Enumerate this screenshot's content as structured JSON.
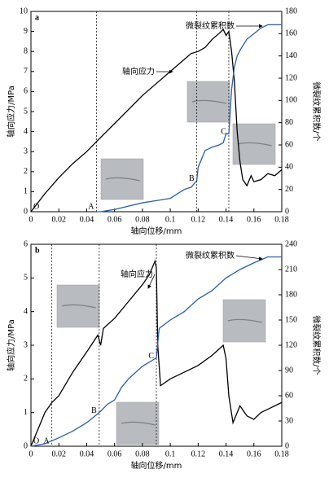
{
  "chart_data": [
    {
      "type": "line",
      "title": "a",
      "x_label": "轴向位移/mm",
      "y_label": "轴向应力/MPa",
      "y2_label": "微裂纹累积数/个",
      "xlim": [
        0,
        0.18
      ],
      "xticks": [
        0,
        0.02,
        0.04,
        0.06,
        0.08,
        0.1,
        0.12,
        0.14,
        0.16,
        0.18
      ],
      "ylim": [
        0,
        10
      ],
      "yticks": [
        0,
        1,
        2,
        3,
        4,
        5,
        6,
        7,
        8,
        9,
        10
      ],
      "y2lim": [
        0,
        180
      ],
      "y2ticks": [
        0,
        20,
        40,
        60,
        80,
        100,
        120,
        140,
        160,
        180
      ],
      "vlines": [
        0.047,
        0.119,
        0.142
      ],
      "point_labels": [
        {
          "label": "O",
          "x": 0,
          "y": 0
        },
        {
          "label": "A",
          "x": 0.047,
          "y": 0
        },
        {
          "label": "B",
          "x": 0.119,
          "y": 28
        },
        {
          "label": "C",
          "x": 0.142,
          "y": 70
        }
      ],
      "series": [
        {
          "name": "轴向应力",
          "color": "#000000",
          "x": [
            0,
            0.01,
            0.02,
            0.03,
            0.04,
            0.047,
            0.06,
            0.07,
            0.08,
            0.09,
            0.1,
            0.11,
            0.115,
            0.12,
            0.125,
            0.13,
            0.135,
            0.138,
            0.14,
            0.142,
            0.144,
            0.146,
            0.148,
            0.15,
            0.152,
            0.155,
            0.158,
            0.16,
            0.165,
            0.17,
            0.175,
            0.18
          ],
          "values": [
            0,
            0.9,
            1.7,
            2.4,
            3.0,
            3.5,
            4.4,
            5.1,
            5.8,
            6.4,
            7.0,
            7.6,
            7.9,
            8.0,
            8.2,
            8.6,
            8.9,
            9.1,
            8.8,
            9.0,
            8.0,
            6.5,
            4.0,
            2.5,
            1.6,
            1.3,
            1.8,
            1.5,
            1.6,
            1.9,
            1.8,
            2.1
          ]
        },
        {
          "name": "微裂纹累积数",
          "color": "#2a5db0",
          "axis": "y2",
          "x": [
            0.047,
            0.05,
            0.06,
            0.07,
            0.08,
            0.09,
            0.1,
            0.11,
            0.115,
            0.119,
            0.12,
            0.125,
            0.13,
            0.135,
            0.138,
            0.14,
            0.142,
            0.144,
            0.146,
            0.148,
            0.15,
            0.155,
            0.16,
            0.165,
            0.17,
            0.18
          ],
          "values": [
            0,
            0,
            2,
            5,
            8,
            10,
            12,
            20,
            22,
            28,
            40,
            55,
            58,
            60,
            62,
            70,
            70,
            110,
            130,
            140,
            145,
            155,
            160,
            165,
            168,
            168
          ]
        }
      ]
    },
    {
      "type": "line",
      "title": "b",
      "x_label": "轴向位移/mm",
      "y_label": "轴向应力/MPa",
      "y2_label": "微裂纹累积数/个",
      "xlim": [
        0,
        0.18
      ],
      "xticks": [
        0,
        0.02,
        0.04,
        0.06,
        0.08,
        0.1,
        0.12,
        0.14,
        0.16,
        0.18
      ],
      "ylim": [
        0,
        6
      ],
      "yticks": [
        0,
        1,
        2,
        3,
        4,
        5,
        6
      ],
      "y2lim": [
        0,
        240
      ],
      "y2ticks": [
        0,
        30,
        60,
        90,
        120,
        150,
        180,
        210,
        240
      ],
      "vlines": [
        0.015,
        0.049,
        0.09
      ],
      "point_labels": [
        {
          "label": "O",
          "x": 0,
          "y": 0
        },
        {
          "label": "A",
          "x": 0.015,
          "y": 0
        },
        {
          "label": "B",
          "x": 0.049,
          "y": 40
        },
        {
          "label": "C",
          "x": 0.09,
          "y": 105
        }
      ],
      "series": [
        {
          "name": "轴向应力",
          "color": "#000000",
          "x": [
            0,
            0.005,
            0.01,
            0.015,
            0.02,
            0.03,
            0.04,
            0.048,
            0.05,
            0.052,
            0.06,
            0.07,
            0.08,
            0.085,
            0.089,
            0.09,
            0.091,
            0.093,
            0.1,
            0.11,
            0.12,
            0.13,
            0.138,
            0.14,
            0.142,
            0.145,
            0.15,
            0.155,
            0.16,
            0.165,
            0.17,
            0.18
          ],
          "values": [
            0,
            0.5,
            1.0,
            1.3,
            1.5,
            2.2,
            2.8,
            3.3,
            3.0,
            3.5,
            3.8,
            4.3,
            4.8,
            5.1,
            5.5,
            5.3,
            3.0,
            1.8,
            2.0,
            2.2,
            2.4,
            2.7,
            3.0,
            2.6,
            1.5,
            0.7,
            1.2,
            0.9,
            0.8,
            1.0,
            1.1,
            1.3
          ]
        },
        {
          "name": "微裂纹累积数",
          "color": "#2a5db0",
          "axis": "y2",
          "x": [
            0,
            0.01,
            0.02,
            0.03,
            0.04,
            0.049,
            0.055,
            0.06,
            0.065,
            0.07,
            0.08,
            0.09,
            0.092,
            0.1,
            0.11,
            0.12,
            0.13,
            0.14,
            0.15,
            0.16,
            0.17,
            0.18
          ],
          "values": [
            0,
            3,
            10,
            18,
            28,
            40,
            50,
            55,
            70,
            80,
            95,
            105,
            140,
            150,
            160,
            175,
            185,
            200,
            210,
            218,
            225,
            225
          ]
        }
      ]
    }
  ]
}
